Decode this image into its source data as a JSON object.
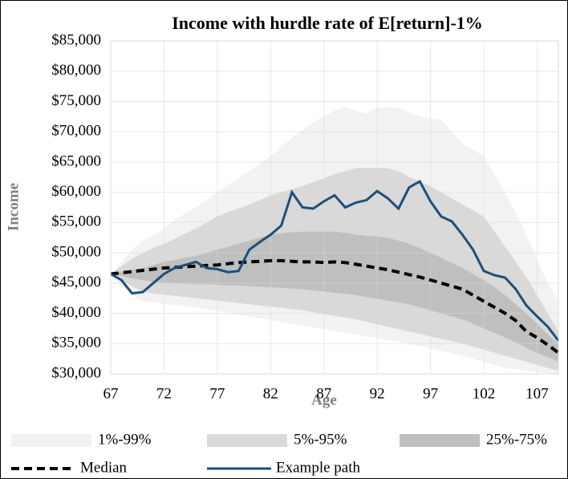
{
  "chart_data": {
    "type": "fan",
    "title": "Income with hurdle rate of E[return]-1%",
    "x_label": "Age",
    "y_label": "Income",
    "x": [
      67,
      68,
      69,
      70,
      71,
      72,
      73,
      74,
      75,
      76,
      77,
      78,
      79,
      80,
      81,
      82,
      83,
      84,
      85,
      86,
      87,
      88,
      89,
      90,
      91,
      92,
      93,
      94,
      95,
      96,
      97,
      98,
      99,
      100,
      101,
      102,
      103,
      104,
      105,
      106,
      107,
      108,
      109
    ],
    "xlim": [
      67,
      109
    ],
    "xticks": [
      67,
      72,
      77,
      82,
      87,
      92,
      97,
      102,
      107
    ],
    "ylim": [
      30000,
      85000
    ],
    "yticks": [
      {
        "value": 30000,
        "label": "$30,000"
      },
      {
        "value": 35000,
        "label": "$35,000"
      },
      {
        "value": 40000,
        "label": "$40,000"
      },
      {
        "value": 45000,
        "label": "$45,000"
      },
      {
        "value": 50000,
        "label": "$50,000"
      },
      {
        "value": 55000,
        "label": "$55,000"
      },
      {
        "value": 60000,
        "label": "$60,000"
      },
      {
        "value": 65000,
        "label": "$65,000"
      },
      {
        "value": 70000,
        "label": "$70,000"
      },
      {
        "value": 75000,
        "label": "$75,000"
      },
      {
        "value": 80000,
        "label": "$80,000"
      },
      {
        "value": 85000,
        "label": "$85,000"
      }
    ],
    "grid": true,
    "legend": "bottom",
    "bands": [
      {
        "name": "1%-99%",
        "color": "#f2f2f2",
        "high": [
          46500,
          48500,
          50500,
          52000,
          53000,
          54000,
          55500,
          56500,
          57500,
          58800,
          60000,
          61200,
          62300,
          63500,
          64700,
          66000,
          67500,
          69000,
          70300,
          71500,
          72500,
          73500,
          74000,
          73500,
          73000,
          74000,
          74000,
          74000,
          73200,
          72500,
          72200,
          72000,
          70000,
          68000,
          67000,
          66000,
          63000,
          60000,
          56500,
          53000,
          49000,
          45000,
          42000
        ],
        "low": [
          46500,
          44500,
          43000,
          42000,
          41800,
          41600,
          41400,
          41200,
          41000,
          40700,
          40400,
          40100,
          39800,
          39500,
          39200,
          38900,
          38600,
          38300,
          38000,
          37700,
          37400,
          37100,
          36800,
          36500,
          36200,
          35900,
          35600,
          35300,
          35000,
          34600,
          34200,
          33800,
          33400,
          33000,
          32500,
          32000,
          31500,
          31000,
          30800,
          30600,
          30300,
          30100,
          30000
        ]
      },
      {
        "name": "5%-95%",
        "color": "#d9d9d9",
        "high": [
          46500,
          47800,
          49000,
          50000,
          50800,
          51500,
          52300,
          53200,
          54000,
          55000,
          56000,
          56700,
          57300,
          58000,
          58700,
          59500,
          60000,
          60500,
          61000,
          61700,
          62300,
          63000,
          63500,
          64000,
          64000,
          64000,
          64000,
          63500,
          62500,
          61800,
          61000,
          60000,
          59000,
          58000,
          57000,
          56000,
          53500,
          51000,
          48500,
          46000,
          43000,
          40000,
          37000
        ],
        "low": [
          46500,
          45500,
          44500,
          43500,
          43300,
          43100,
          42900,
          42700,
          42500,
          42300,
          42100,
          41900,
          41700,
          41500,
          41300,
          41100,
          40900,
          40700,
          40500,
          40200,
          39900,
          39600,
          39300,
          39000,
          38600,
          38200,
          37800,
          37400,
          37000,
          36600,
          36200,
          35800,
          35400,
          35000,
          34500,
          34000,
          33500,
          33000,
          32500,
          32000,
          31500,
          31000,
          30500
        ]
      },
      {
        "name": "25%-75%",
        "color": "#bfbfbf",
        "high": [
          46500,
          46800,
          47200,
          47500,
          48000,
          48500,
          48800,
          49200,
          49500,
          50000,
          50500,
          51000,
          51500,
          52000,
          52500,
          53000,
          53200,
          53400,
          53500,
          53500,
          53500,
          53500,
          53300,
          53000,
          52800,
          52700,
          52500,
          52000,
          51500,
          50800,
          50000,
          49200,
          48300,
          47500,
          46500,
          45500,
          44300,
          43000,
          41500,
          40000,
          38300,
          36500,
          35000
        ],
        "low": [
          46500,
          46200,
          45800,
          45500,
          45200,
          45000,
          45000,
          44900,
          44800,
          44800,
          44700,
          44600,
          44600,
          44500,
          44400,
          44300,
          44200,
          44100,
          44000,
          43800,
          43600,
          43400,
          43200,
          43000,
          42700,
          42400,
          42100,
          41800,
          41500,
          41000,
          40500,
          40000,
          39500,
          39000,
          38300,
          37500,
          36800,
          36000,
          35200,
          34300,
          33500,
          32800,
          32000
        ]
      }
    ],
    "series": [
      {
        "name": "Median",
        "color": "#000000",
        "dashed": true,
        "values": [
          46500,
          46700,
          46900,
          47100,
          47300,
          47500,
          47600,
          47700,
          47800,
          47900,
          48000,
          48200,
          48400,
          48500,
          48600,
          48700,
          48700,
          48600,
          48500,
          48500,
          48400,
          48500,
          48400,
          48100,
          47800,
          47500,
          47200,
          46800,
          46400,
          46000,
          45500,
          45000,
          44500,
          44000,
          43000,
          42000,
          41000,
          40000,
          38800,
          37000,
          36000,
          34800,
          33500
        ]
      },
      {
        "name": "Example path",
        "color": "#1f4e79",
        "dashed": false,
        "values": [
          46500,
          45500,
          43300,
          43500,
          45000,
          46500,
          47500,
          48000,
          48500,
          47500,
          47300,
          46800,
          47000,
          50500,
          51800,
          53000,
          54500,
          60000,
          57500,
          57300,
          58500,
          59500,
          57500,
          58300,
          58700,
          60200,
          59000,
          57300,
          60800,
          61800,
          58500,
          56000,
          55200,
          53000,
          50500,
          47000,
          46300,
          45900,
          44000,
          41300,
          39500,
          37800,
          35500
        ]
      }
    ]
  }
}
